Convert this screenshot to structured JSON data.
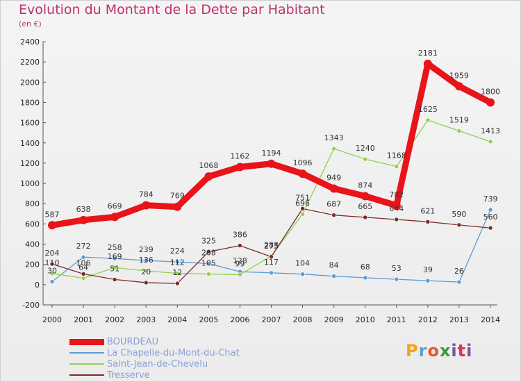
{
  "title": "Evolution du Montant de la Dette par Habitant",
  "subtitle": "(en €)",
  "logo": {
    "text": "Proxiti",
    "letters": [
      "P",
      "r",
      "o",
      "x",
      "i",
      "t",
      "i"
    ]
  },
  "chart_data": {
    "type": "line",
    "x": [
      2000,
      2001,
      2002,
      2003,
      2004,
      2005,
      2006,
      2007,
      2008,
      2009,
      2010,
      2011,
      2012,
      2013,
      2014
    ],
    "ylim": [
      -200,
      2400
    ],
    "yticks": [
      -200,
      0,
      200,
      400,
      600,
      800,
      1000,
      1200,
      1400,
      1600,
      1800,
      2000,
      2200,
      2400
    ],
    "grid": false,
    "legend_position": "bottom-left",
    "series": [
      {
        "name": "BOURDEAU",
        "color": "#e8141a",
        "values": [
          587,
          638,
          669,
          784,
          769,
          1068,
          1162,
          1194,
          1096,
          949,
          874,
          782,
          2181,
          1959,
          1800
        ]
      },
      {
        "name": "La Chapelle-du-Mont-du-Chat",
        "color": "#5b9bd5",
        "values": [
          30,
          272,
          258,
          239,
          224,
          208,
          128,
          117,
          104,
          84,
          68,
          53,
          39,
          26,
          739
        ]
      },
      {
        "name": "Saint-Jean-de-Chevelu",
        "color": "#8fd14f",
        "values": [
          110,
          64,
          169,
          136,
          112,
          105,
          99,
          283,
          696,
          1343,
          1240,
          1168,
          1625,
          1519,
          1413
        ]
      },
      {
        "name": "Tresserve",
        "color": "#7b2a2a",
        "values": [
          204,
          106,
          51,
          20,
          12,
          325,
          386,
          275,
          751,
          687,
          665,
          644,
          621,
          590,
          560
        ]
      }
    ]
  }
}
